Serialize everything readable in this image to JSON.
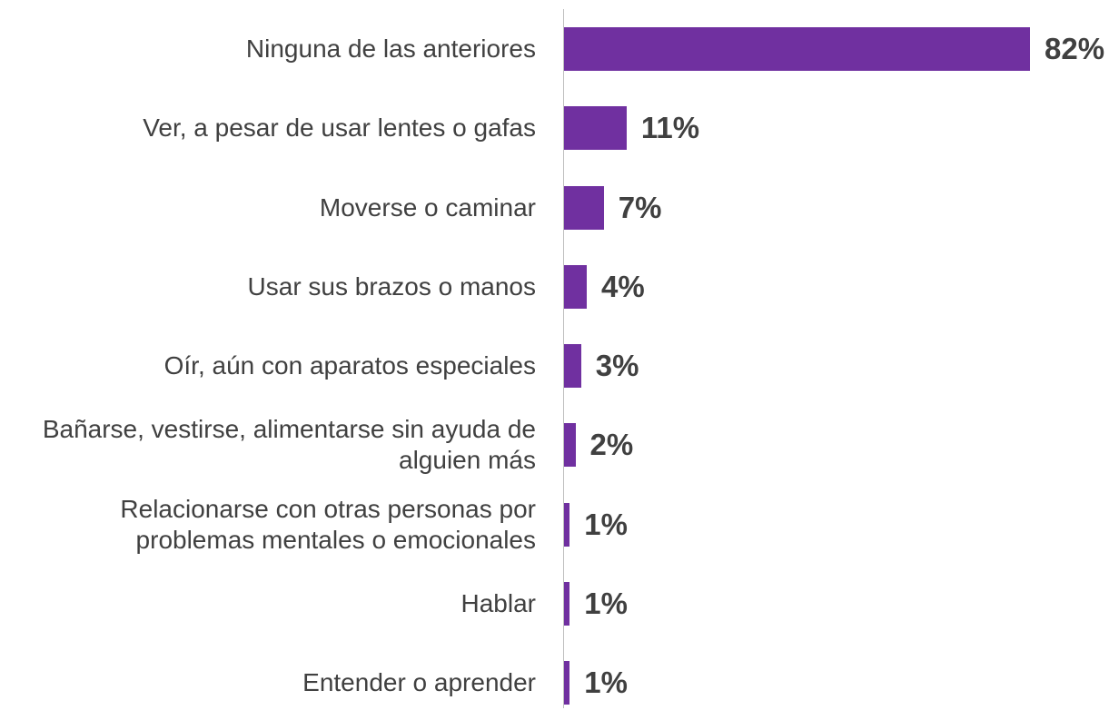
{
  "chart_data": {
    "type": "bar",
    "orientation": "horizontal",
    "categories": [
      "Ninguna de las anteriores",
      "Ver, a pesar de usar lentes o gafas",
      "Moverse o caminar",
      "Usar sus brazos o manos",
      "Oír, aún con aparatos especiales",
      "Bañarse, vestirse, alimentarse sin ayuda de alguien más",
      "Relacionarse con otras personas por problemas mentales o emocionales",
      "Hablar",
      "Entender o aprender"
    ],
    "values": [
      82,
      11,
      7,
      4,
      3,
      2,
      1,
      1,
      1
    ],
    "value_labels": [
      "82%",
      "11%",
      "7%",
      "4%",
      "3%",
      "2%",
      "1%",
      "1%",
      "1%"
    ],
    "color": "#7030a0"
  }
}
